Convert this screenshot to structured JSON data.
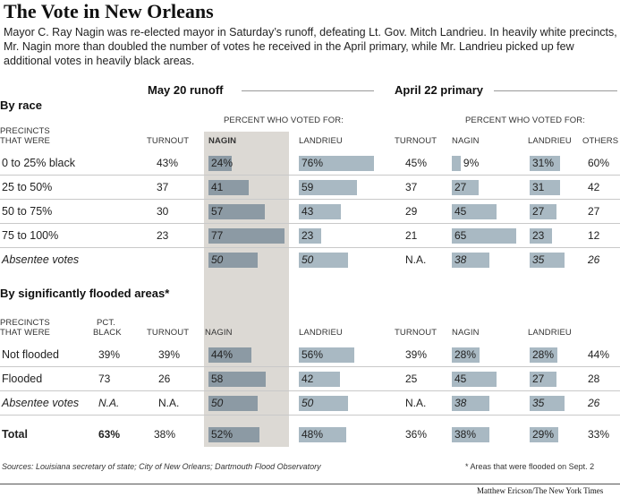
{
  "title": "The Vote in New Orleans",
  "intro": "Mayor C. Ray Nagin was re-elected mayor in Saturday’s runoff, defeating Lt. Gov. Mitch Landrieu. In heavily white precincts, Mr. Nagin more than doubled the number of votes he received in the April primary, while Mr. Landrieu picked up few additional votes in heavily black areas.",
  "headers": {
    "runoff": "May 20 runoff",
    "primary": "April 22 primary",
    "percent_who_voted": "PERCENT WHO VOTED FOR:",
    "turnout": "TURNOUT",
    "nagin": "NAGIN",
    "landrieu": "LANDRIEU",
    "others": "OTHERS",
    "precincts_line1": "PRECINCTS",
    "precincts_line2": "THAT WERE",
    "pct_black_line1": "PCT.",
    "pct_black_line2": "BLACK"
  },
  "sections": {
    "by_race": "By race",
    "by_flooded": "By significantly flooded areas*"
  },
  "chart_data": {
    "type": "table",
    "by_race": [
      {
        "label": "0 to 25% black",
        "runoff_turnout": "43%",
        "runoff_nagin": "24%",
        "runoff_landrieu": "76%",
        "primary_turnout": "45%",
        "primary_nagin": "9%",
        "primary_landrieu": "31%",
        "primary_others": "60%",
        "nagin_value": 24,
        "landrieu_value": 76,
        "p_nagin_value": 9,
        "p_landrieu_value": 31
      },
      {
        "label": "25 to 50%",
        "runoff_turnout": "37",
        "runoff_nagin": "41",
        "runoff_landrieu": "59",
        "primary_turnout": "37",
        "primary_nagin": "27",
        "primary_landrieu": "31",
        "primary_others": "42",
        "nagin_value": 41,
        "landrieu_value": 59,
        "p_nagin_value": 27,
        "p_landrieu_value": 31
      },
      {
        "label": "50 to 75%",
        "runoff_turnout": "30",
        "runoff_nagin": "57",
        "runoff_landrieu": "43",
        "primary_turnout": "29",
        "primary_nagin": "45",
        "primary_landrieu": "27",
        "primary_others": "27",
        "nagin_value": 57,
        "landrieu_value": 43,
        "p_nagin_value": 45,
        "p_landrieu_value": 27
      },
      {
        "label": "75 to 100%",
        "runoff_turnout": "23",
        "runoff_nagin": "77",
        "runoff_landrieu": "23",
        "primary_turnout": "21",
        "primary_nagin": "65",
        "primary_landrieu": "23",
        "primary_others": "12",
        "nagin_value": 77,
        "landrieu_value": 23,
        "p_nagin_value": 65,
        "p_landrieu_value": 23
      },
      {
        "label": "Absentee votes",
        "runoff_turnout": "",
        "runoff_nagin": "50",
        "runoff_landrieu": "50",
        "primary_turnout": "N.A.",
        "primary_nagin": "38",
        "primary_landrieu": "35",
        "primary_others": "26",
        "nagin_value": 50,
        "landrieu_value": 50,
        "p_nagin_value": 38,
        "p_landrieu_value": 35
      }
    ],
    "by_flooded": [
      {
        "label": "Not flooded",
        "pct_black": "39%",
        "runoff_turnout": "39%",
        "runoff_nagin": "44%",
        "runoff_landrieu": "56%",
        "primary_turnout": "39%",
        "primary_nagin": "28%",
        "primary_landrieu": "28%",
        "primary_others": "44%",
        "nagin_value": 44,
        "landrieu_value": 56,
        "p_nagin_value": 28,
        "p_landrieu_value": 28
      },
      {
        "label": "Flooded",
        "pct_black": "73",
        "runoff_turnout": "26",
        "runoff_nagin": "58",
        "runoff_landrieu": "42",
        "primary_turnout": "25",
        "primary_nagin": "45",
        "primary_landrieu": "27",
        "primary_others": "28",
        "nagin_value": 58,
        "landrieu_value": 42,
        "p_nagin_value": 45,
        "p_landrieu_value": 27
      },
      {
        "label": "Absentee votes",
        "pct_black": "N.A.",
        "runoff_turnout": "N.A.",
        "runoff_nagin": "50",
        "runoff_landrieu": "50",
        "primary_turnout": "N.A.",
        "primary_nagin": "38",
        "primary_landrieu": "35",
        "primary_others": "26",
        "nagin_value": 50,
        "landrieu_value": 50,
        "p_nagin_value": 38,
        "p_landrieu_value": 35
      }
    ],
    "total": {
      "label": "Total",
      "pct_black": "63%",
      "runoff_turnout": "38%",
      "runoff_nagin": "52%",
      "runoff_landrieu": "48%",
      "primary_turnout": "36%",
      "primary_nagin": "38%",
      "primary_landrieu": "29%",
      "primary_others": "33%",
      "nagin_value": 52,
      "landrieu_value": 48,
      "p_nagin_value": 38,
      "p_landrieu_value": 29
    }
  },
  "footer": {
    "sources": "Sources: Louisiana secretary of state; City of New Orleans; Dartmouth Flood Observatory",
    "footnote": "* Areas that were flooded on Sept. 2",
    "credit": "Matthew Ericson/The New York Times"
  },
  "colors": {
    "shade": "#dcd9d4",
    "bar_dark": "#8c9aa4",
    "bar_light": "#a9b9c3"
  }
}
